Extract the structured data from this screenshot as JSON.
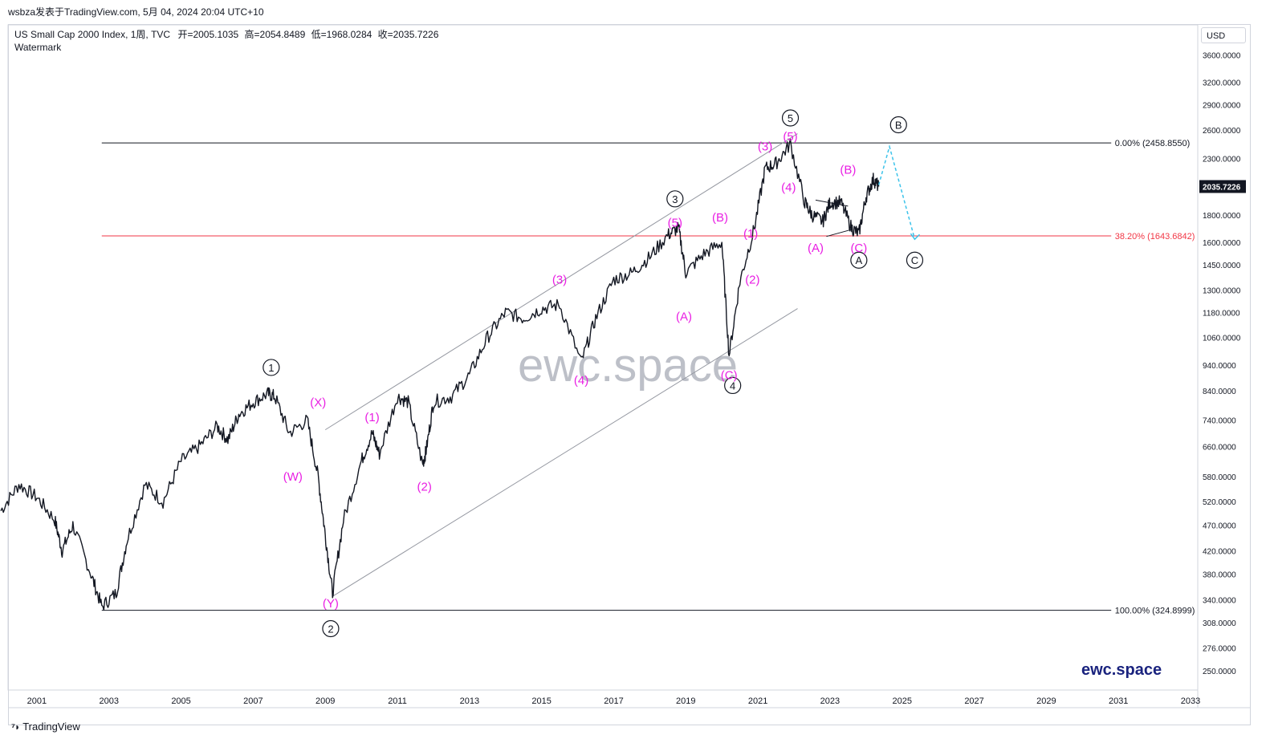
{
  "header": {
    "publish_text": "wsbza发表于TradingView.com, 5月 04, 2024 20:04 UTC+10"
  },
  "legend": {
    "symbol": "US Small Cap 2000 Index, 1周, TVC",
    "open": "开=2005.1035",
    "high": "高=2054.8489",
    "low": "低=1968.0284",
    "close": "收=2035.7226",
    "watermark_label": "Watermark"
  },
  "toolbar": {
    "currency": "USD"
  },
  "footer": {
    "brand": "TradingView",
    "brand_icon": "tradingview-logo-icon",
    "site_label": "ewc.space"
  },
  "chart_data": {
    "type": "line",
    "watermark": "ewc.space",
    "y_scale": "log",
    "ylim": [
      230,
      4100
    ],
    "xlim": [
      2000.2,
      2033.2
    ],
    "y_ticks": [
      "3600.0000",
      "3200.0000",
      "2900.0000",
      "2600.0000",
      "2300.0000",
      "2035.7226",
      "1800.0000",
      "1600.0000",
      "1450.0000",
      "1300.0000",
      "1180.0000",
      "1060.0000",
      "940.0000",
      "840.0000",
      "740.0000",
      "660.0000",
      "580.0000",
      "520.0000",
      "470.0000",
      "420.0000",
      "380.0000",
      "340.0000",
      "308.0000",
      "276.0000",
      "250.0000"
    ],
    "last_price": "2035.7226",
    "x_ticks": [
      "2001",
      "2003",
      "2005",
      "2007",
      "2009",
      "2011",
      "2013",
      "2015",
      "2017",
      "2019",
      "2021",
      "2023",
      "2025",
      "2027",
      "2029",
      "2031",
      "2033"
    ],
    "series": [
      {
        "x": [
          2000.0,
          2000.5,
          2001.0,
          2001.5,
          2001.7,
          2002.0,
          2002.5,
          2002.8,
          2003.2,
          2003.5,
          2004.0,
          2004.5,
          2005.0,
          2005.5,
          2006.0,
          2006.3,
          2006.6,
          2007.0,
          2007.4,
          2007.6,
          2008.0,
          2008.5,
          2008.8,
          2009.0,
          2009.2,
          2009.5,
          2010.0,
          2010.3,
          2010.5,
          2011.0,
          2011.3,
          2011.7,
          2011.8,
          2012.0,
          2012.5,
          2013.0,
          2013.5,
          2014.0,
          2014.5,
          2015.0,
          2015.5,
          2016.1,
          2016.5,
          2017.0,
          2017.5,
          2018.0,
          2018.5,
          2018.8,
          2019.0,
          2019.5,
          2020.0,
          2020.2,
          2020.5,
          2020.9,
          2021.2,
          2021.5,
          2021.9,
          2022.3,
          2022.5,
          2022.8,
          2023.0,
          2023.3,
          2023.6,
          2023.8,
          2024.0,
          2024.2,
          2024.35
        ],
        "y": [
          500,
          560,
          530,
          480,
          420,
          470,
          380,
          330,
          350,
          440,
          560,
          520,
          620,
          660,
          720,
          680,
          760,
          800,
          830,
          820,
          700,
          740,
          580,
          450,
          350,
          480,
          620,
          700,
          640,
          820,
          800,
          610,
          650,
          800,
          820,
          900,
          1060,
          1180,
          1150,
          1200,
          1220,
          950,
          1150,
          1360,
          1400,
          1500,
          1650,
          1700,
          1400,
          1520,
          1600,
          980,
          1350,
          1700,
          2200,
          2250,
          2450,
          1900,
          1800,
          1750,
          1900,
          1900,
          1700,
          1660,
          1950,
          2100,
          2035.72
        ]
      }
    ],
    "fib_levels": [
      {
        "label": "0.00% (2458.8550)",
        "value": 2458.855,
        "color": "#131722"
      },
      {
        "label": "38.20% (1643.6842)",
        "value": 1643.6842,
        "color": "#f23645"
      },
      {
        "label": "100.00% (324.8999)",
        "value": 324.8999,
        "color": "#131722"
      }
    ],
    "channel": [
      {
        "x": [
          2009.0,
          2022.1
        ],
        "y": [
          710,
          2560
        ]
      },
      {
        "x": [
          2009.2,
          2022.1
        ],
        "y": [
          345,
          1200
        ]
      }
    ],
    "triangle": {
      "x": [
        2022.6,
        2023.5,
        2023.6,
        2022.9
      ],
      "y": [
        1920,
        1870,
        1690,
        1640
      ]
    },
    "projection": {
      "x": [
        2024.35,
        2024.65,
        2025.35
      ],
      "y": [
        2050,
        2420,
        1620
      ]
    },
    "wave_labels": [
      {
        "text": "1",
        "circled": true,
        "x": 2007.5,
        "y": 930,
        "color": "#131722"
      },
      {
        "text": "2",
        "circled": true,
        "x": 2009.15,
        "y": 300,
        "color": "#131722"
      },
      {
        "text": "3",
        "circled": true,
        "x": 2018.7,
        "y": 1930,
        "color": "#131722"
      },
      {
        "text": "4",
        "circled": true,
        "x": 2020.3,
        "y": 860,
        "color": "#131722"
      },
      {
        "text": "5",
        "circled": true,
        "x": 2021.9,
        "y": 2740,
        "color": "#131722"
      },
      {
        "text": "A",
        "circled": true,
        "x": 2023.8,
        "y": 1480,
        "color": "#131722"
      },
      {
        "text": "B",
        "circled": true,
        "x": 2024.9,
        "y": 2660,
        "color": "#131722"
      },
      {
        "text": "C",
        "circled": true,
        "x": 2025.35,
        "y": 1480,
        "color": "#131722"
      },
      {
        "text": "(X)",
        "circled": false,
        "x": 2008.8,
        "y": 800,
        "color": "#e91ee3"
      },
      {
        "text": "(W)",
        "circled": false,
        "x": 2008.1,
        "y": 580,
        "color": "#e91ee3"
      },
      {
        "text": "(Y)",
        "circled": false,
        "x": 2009.15,
        "y": 335,
        "color": "#e91ee3"
      },
      {
        "text": "(1)",
        "circled": false,
        "x": 2010.3,
        "y": 750,
        "color": "#e91ee3"
      },
      {
        "text": "(2)",
        "circled": false,
        "x": 2011.75,
        "y": 555,
        "color": "#e91ee3"
      },
      {
        "text": "(3)",
        "circled": false,
        "x": 2015.5,
        "y": 1360,
        "color": "#e91ee3"
      },
      {
        "text": "(4)",
        "circled": false,
        "x": 2016.1,
        "y": 880,
        "color": "#e91ee3"
      },
      {
        "text": "(5)",
        "circled": false,
        "x": 2018.7,
        "y": 1740,
        "color": "#e91ee3"
      },
      {
        "text": "(A)",
        "circled": false,
        "x": 2018.95,
        "y": 1160,
        "color": "#e91ee3"
      },
      {
        "text": "(B)",
        "circled": false,
        "x": 2019.95,
        "y": 1780,
        "color": "#e91ee3"
      },
      {
        "text": "(C)",
        "circled": false,
        "x": 2020.2,
        "y": 900,
        "color": "#e91ee3"
      },
      {
        "text": "(1)",
        "circled": false,
        "x": 2020.8,
        "y": 1660,
        "color": "#e91ee3"
      },
      {
        "text": "(2)",
        "circled": false,
        "x": 2020.85,
        "y": 1360,
        "color": "#e91ee3"
      },
      {
        "text": "(3)",
        "circled": false,
        "x": 2021.2,
        "y": 2420,
        "color": "#e91ee3"
      },
      {
        "text": "(4)",
        "circled": false,
        "x": 2021.85,
        "y": 2030,
        "color": "#e91ee3"
      },
      {
        "text": "(5)",
        "circled": false,
        "x": 2021.9,
        "y": 2530,
        "color": "#e91ee3"
      },
      {
        "text": "(A)",
        "circled": false,
        "x": 2022.6,
        "y": 1560,
        "color": "#e91ee3"
      },
      {
        "text": "(B)",
        "circled": false,
        "x": 2023.5,
        "y": 2190,
        "color": "#e91ee3"
      },
      {
        "text": "(C)",
        "circled": false,
        "x": 2023.8,
        "y": 1560,
        "color": "#e91ee3"
      }
    ]
  }
}
